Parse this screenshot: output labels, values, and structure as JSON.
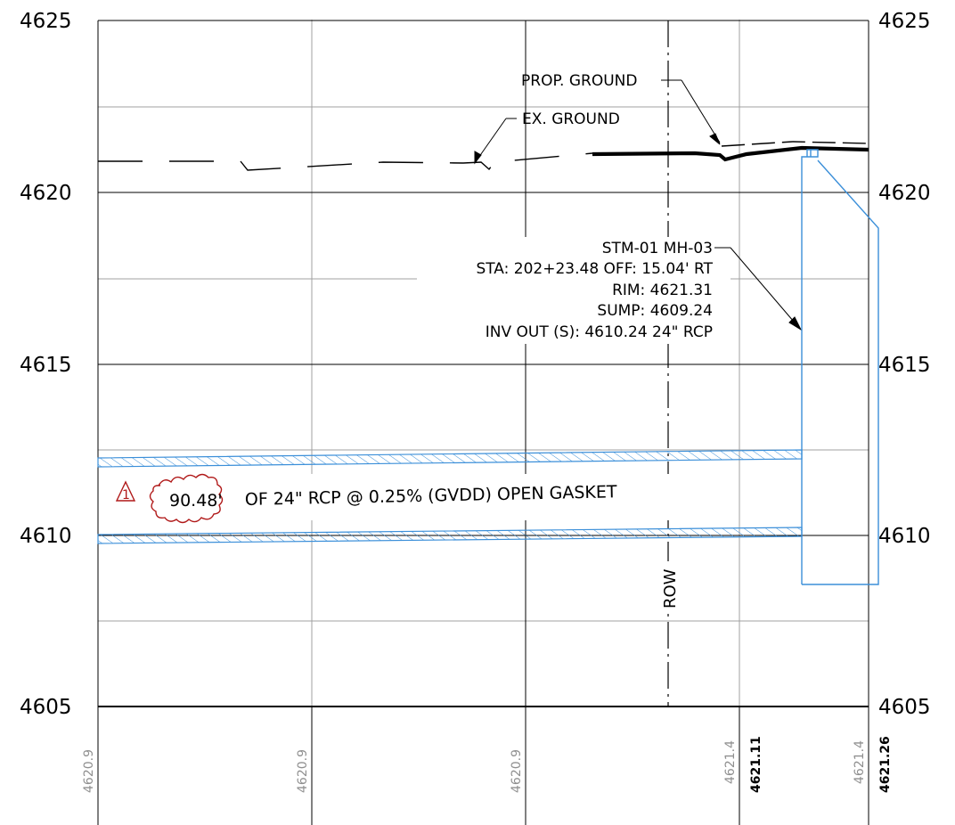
{
  "elevation_labels": {
    "left": [
      "4625",
      "4620",
      "4615",
      "4610",
      "4605"
    ],
    "right": [
      "4625",
      "4620",
      "4615",
      "4610",
      "4605"
    ]
  },
  "callouts": {
    "prop_ground": "PROP. GROUND",
    "ex_ground": "EX. GROUND",
    "row": "ROW"
  },
  "structure": {
    "line1": "STM-01 MH-03",
    "line2": "STA: 202+23.48 OFF: 15.04' RT",
    "line3": "RIM: 4621.31",
    "line4": "SUMP: 4609.24",
    "line5": "INV OUT (S): 4610.24 24\" RCP"
  },
  "pipe": {
    "revision": "1",
    "length": "90.48'",
    "description": "OF 24\" RCP @ 0.25% (GVDD) OPEN GASKET"
  },
  "station_labels": {
    "existing": [
      "4620.9",
      "4620.9",
      "4620.9",
      "4621.4",
      "4621.4"
    ],
    "proposed": [
      "4621.11",
      "4621.26"
    ]
  },
  "colors": {
    "grid": "#a0a0a0",
    "line": "#000000",
    "pipe": "#3b8fd9",
    "revision": "#b01818",
    "existing_label": "#909090"
  }
}
